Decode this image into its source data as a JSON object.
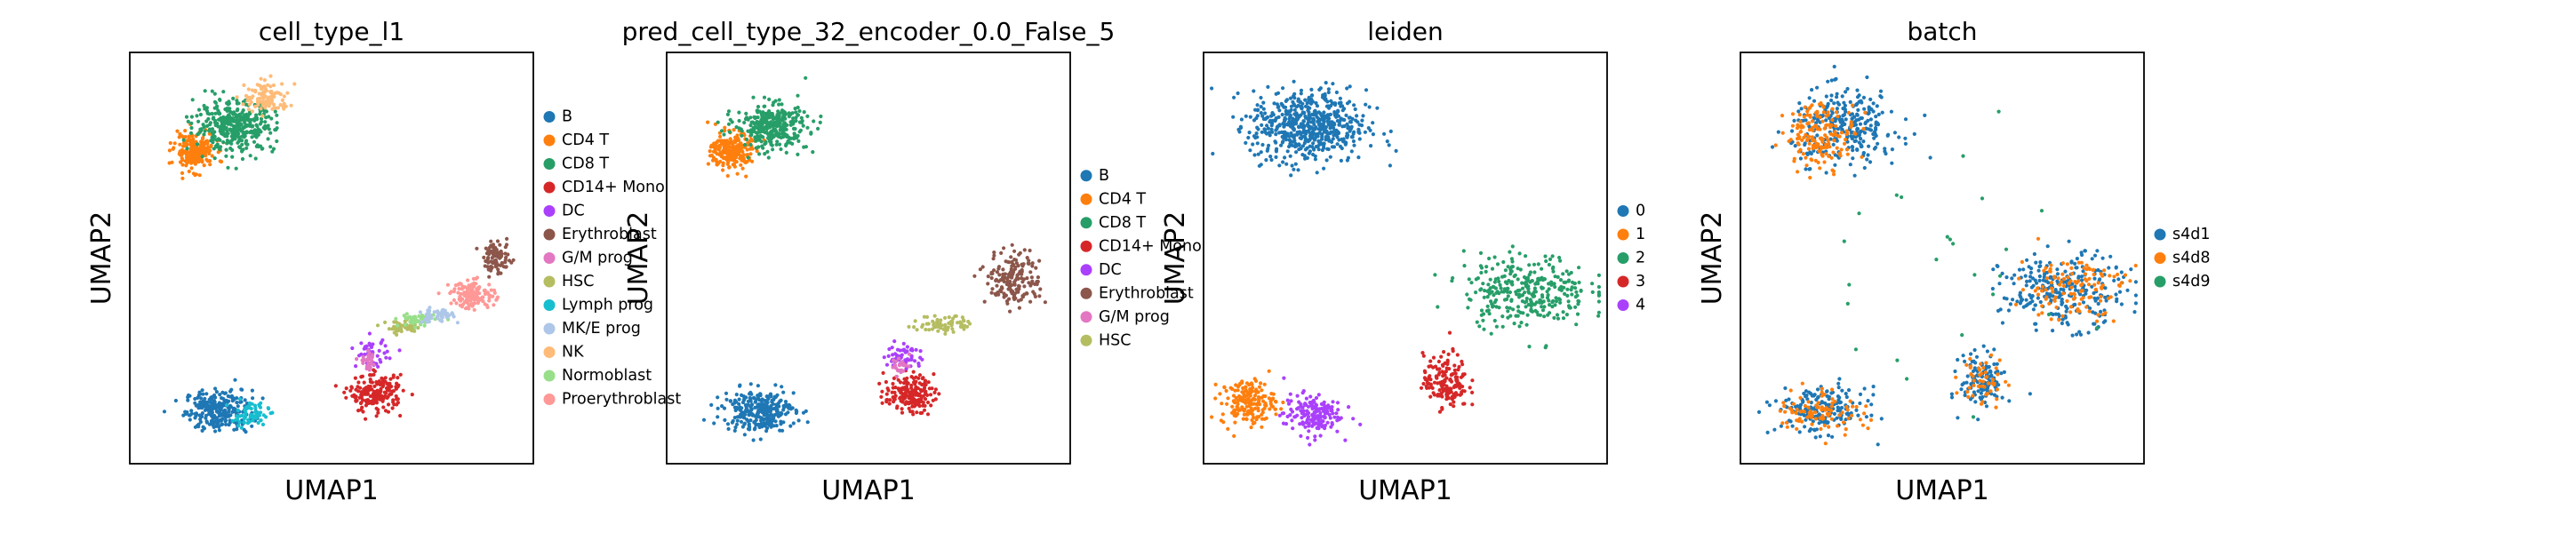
{
  "chart_data": [
    {
      "type": "scatter",
      "title": "cell_type_l1",
      "xlabel": "UMAP1",
      "ylabel": "UMAP2",
      "grid": false,
      "legend_position": "right",
      "legend": [
        {
          "label": "B",
          "color": "#1f77b4"
        },
        {
          "label": "CD4 T",
          "color": "#ff7f0e"
        },
        {
          "label": "CD8 T",
          "color": "#279e68"
        },
        {
          "label": "CD14+ Mono",
          "color": "#d62728"
        },
        {
          "label": "DC",
          "color": "#aa40fc"
        },
        {
          "label": "Erythroblast",
          "color": "#8c564b"
        },
        {
          "label": "G/M prog",
          "color": "#e377c2"
        },
        {
          "label": "HSC",
          "color": "#b5bd61"
        },
        {
          "label": "Lymph prog",
          "color": "#17becf"
        },
        {
          "label": "MK/E prog",
          "color": "#aec7e8"
        },
        {
          "label": "NK",
          "color": "#ffbb78"
        },
        {
          "label": "Normoblast",
          "color": "#98df8a"
        },
        {
          "label": "Proerythroblast",
          "color": "#ff9896"
        }
      ],
      "series": [
        {
          "name": "B",
          "x": [
            0.15,
            0.28
          ],
          "y": [
            0.1,
            0.16
          ],
          "n": 260
        },
        {
          "name": "CD4 T",
          "x": [
            0.13,
            0.21
          ],
          "y": [
            0.73,
            0.82
          ],
          "n": 220
        },
        {
          "name": "CD8 T",
          "x": [
            0.19,
            0.38
          ],
          "y": [
            0.77,
            0.89
          ],
          "n": 380
        },
        {
          "name": "CD14+ Mono",
          "x": [
            0.55,
            0.67
          ],
          "y": [
            0.14,
            0.23
          ],
          "n": 190
        },
        {
          "name": "DC",
          "x": [
            0.56,
            0.64
          ],
          "y": [
            0.24,
            0.31
          ],
          "n": 45
        },
        {
          "name": "Erythroblast",
          "x": [
            0.87,
            0.95
          ],
          "y": [
            0.47,
            0.54
          ],
          "n": 90
        },
        {
          "name": "G/M prog",
          "x": [
            0.57,
            0.62
          ],
          "y": [
            0.24,
            0.29
          ],
          "n": 30
        },
        {
          "name": "HSC",
          "x": [
            0.63,
            0.72
          ],
          "y": [
            0.32,
            0.36
          ],
          "n": 50
        },
        {
          "name": "Lymph prog",
          "x": [
            0.24,
            0.33
          ],
          "y": [
            0.1,
            0.14
          ],
          "n": 70
        },
        {
          "name": "MK/E prog",
          "x": [
            0.71,
            0.8
          ],
          "y": [
            0.35,
            0.38
          ],
          "n": 50
        },
        {
          "name": "NK",
          "x": [
            0.28,
            0.38
          ],
          "y": [
            0.85,
            0.92
          ],
          "n": 110
        },
        {
          "name": "Normoblast",
          "x": [
            0.66,
            0.76
          ],
          "y": [
            0.33,
            0.37
          ],
          "n": 50
        },
        {
          "name": "Proerythroblast",
          "x": [
            0.79,
            0.91
          ],
          "y": [
            0.38,
            0.45
          ],
          "n": 140
        }
      ]
    },
    {
      "type": "scatter",
      "title": "pred_cell_type_32_encoder_0.0_False_5",
      "xlabel": "UMAP1",
      "ylabel": "UMAP2",
      "grid": false,
      "legend_position": "right",
      "legend": [
        {
          "label": "B",
          "color": "#1f77b4"
        },
        {
          "label": "CD4 T",
          "color": "#ff7f0e"
        },
        {
          "label": "CD8 T",
          "color": "#279e68"
        },
        {
          "label": "CD14+ Mono",
          "color": "#d62728"
        },
        {
          "label": "DC",
          "color": "#aa40fc"
        },
        {
          "label": "Erythroblast",
          "color": "#8c564b"
        },
        {
          "label": "G/M prog",
          "color": "#e377c2"
        },
        {
          "label": "HSC",
          "color": "#b5bd61"
        }
      ],
      "series": [
        {
          "name": "B",
          "x": [
            0.15,
            0.3
          ],
          "y": [
            0.09,
            0.16
          ],
          "n": 300
        },
        {
          "name": "CD4 T",
          "x": [
            0.12,
            0.21
          ],
          "y": [
            0.73,
            0.82
          ],
          "n": 240
        },
        {
          "name": "CD8 T",
          "x": [
            0.19,
            0.34
          ],
          "y": [
            0.77,
            0.88
          ],
          "n": 330
        },
        {
          "name": "CD14+ Mono",
          "x": [
            0.54,
            0.66
          ],
          "y": [
            0.14,
            0.22
          ],
          "n": 180
        },
        {
          "name": "DC",
          "x": [
            0.55,
            0.64
          ],
          "y": [
            0.23,
            0.3
          ],
          "n": 55
        },
        {
          "name": "Erythroblast",
          "x": [
            0.79,
            0.93
          ],
          "y": [
            0.38,
            0.53
          ],
          "n": 180
        },
        {
          "name": "G/M prog",
          "x": [
            0.56,
            0.6
          ],
          "y": [
            0.22,
            0.27
          ],
          "n": 25
        },
        {
          "name": "HSC",
          "x": [
            0.62,
            0.76
          ],
          "y": [
            0.31,
            0.37
          ],
          "n": 70
        }
      ]
    },
    {
      "type": "scatter",
      "title": "leiden",
      "xlabel": "UMAP1",
      "ylabel": "UMAP2",
      "grid": false,
      "legend_position": "right",
      "legend": [
        {
          "label": "0",
          "color": "#1f77b4"
        },
        {
          "label": "1",
          "color": "#ff7f0e"
        },
        {
          "label": "2",
          "color": "#279e68"
        },
        {
          "label": "3",
          "color": "#d62728"
        },
        {
          "label": "4",
          "color": "#aa40fc"
        }
      ],
      "series": [
        {
          "name": "0",
          "x": [
            0.12,
            0.4
          ],
          "y": [
            0.72,
            0.92
          ],
          "n": 600
        },
        {
          "name": "1",
          "x": [
            0.05,
            0.18
          ],
          "y": [
            0.09,
            0.2
          ],
          "n": 180
        },
        {
          "name": "2",
          "x": [
            0.64,
            0.95
          ],
          "y": [
            0.3,
            0.55
          ],
          "n": 320
        },
        {
          "name": "3",
          "x": [
            0.55,
            0.66
          ],
          "y": [
            0.14,
            0.3
          ],
          "n": 160
        },
        {
          "name": "4",
          "x": [
            0.2,
            0.34
          ],
          "y": [
            0.07,
            0.17
          ],
          "n": 170
        }
      ]
    },
    {
      "type": "scatter",
      "title": "batch",
      "xlabel": "UMAP1",
      "ylabel": "UMAP2",
      "grid": false,
      "legend_position": "right",
      "legend": [
        {
          "label": "s4d1",
          "color": "#1f77b4"
        },
        {
          "label": "s4d8",
          "color": "#ff7f0e"
        },
        {
          "label": "s4d9",
          "color": "#279e68"
        }
      ],
      "series": [
        {
          "name": "s4d1",
          "x": [
            0.05,
            0.95
          ],
          "y": [
            0.07,
            0.94
          ],
          "n": 900
        },
        {
          "name": "s4d8",
          "x": [
            0.05,
            0.95
          ],
          "y": [
            0.07,
            0.94
          ],
          "n": 420
        },
        {
          "name": "s4d9",
          "x": [
            0.05,
            0.95
          ],
          "y": [
            0.07,
            0.94
          ],
          "n": 25
        }
      ]
    }
  ]
}
